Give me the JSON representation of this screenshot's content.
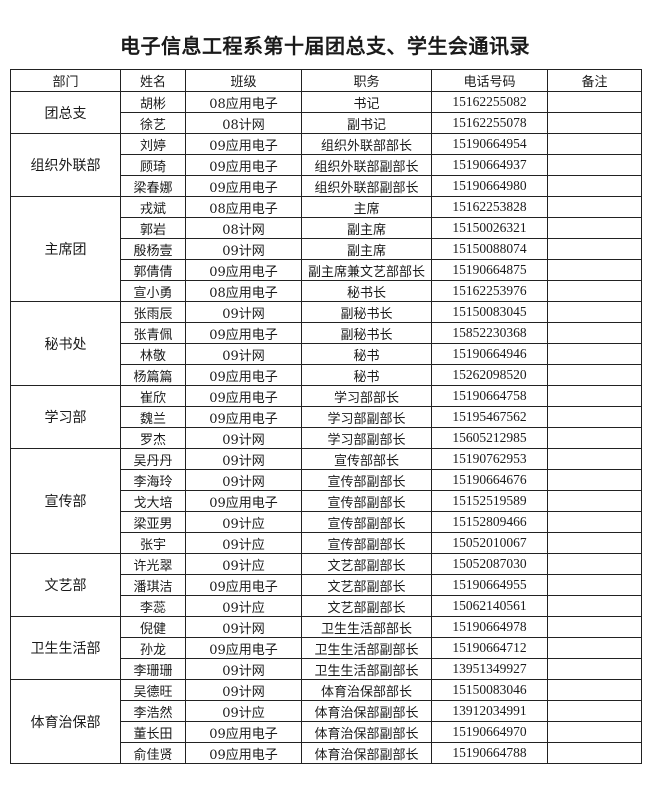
{
  "title": "电子信息工程系第十届团总支、学生会通讯录",
  "headers": [
    "部门",
    "姓名",
    "班级",
    "职务",
    "电话号码",
    "备注"
  ],
  "groups": [
    {
      "dept": "团总支",
      "members": [
        {
          "name": "胡彬",
          "class": "08应用电子",
          "role": "书记",
          "phone": "15162255082",
          "note": ""
        },
        {
          "name": "徐艺",
          "class": "08计网",
          "role": "副书记",
          "phone": "15162255078",
          "note": ""
        }
      ]
    },
    {
      "dept": "组织外联部",
      "members": [
        {
          "name": "刘婷",
          "class": "09应用电子",
          "role": "组织外联部部长",
          "phone": "15190664954",
          "note": ""
        },
        {
          "name": "顾琦",
          "class": "09应用电子",
          "role": "组织外联部副部长",
          "phone": "15190664937",
          "note": ""
        },
        {
          "name": "梁春娜",
          "class": "09应用电子",
          "role": "组织外联部副部长",
          "phone": "15190664980",
          "note": ""
        }
      ]
    },
    {
      "dept": "主席团",
      "members": [
        {
          "name": "戎斌",
          "class": "08应用电子",
          "role": "主席",
          "phone": "15162253828",
          "note": ""
        },
        {
          "name": "郭岩",
          "class": "08计网",
          "role": "副主席",
          "phone": "15150026321",
          "note": ""
        },
        {
          "name": "殷杨壹",
          "class": "09计网",
          "role": "副主席",
          "phone": "15150088074",
          "note": ""
        },
        {
          "name": "郭倩倩",
          "class": "09应用电子",
          "role": "副主席兼文艺部部长",
          "phone": "15190664875",
          "note": ""
        },
        {
          "name": "宣小勇",
          "class": "08应用电子",
          "role": "秘书长",
          "phone": "15162253976",
          "note": ""
        }
      ]
    },
    {
      "dept": "秘书处",
      "members": [
        {
          "name": "张雨辰",
          "class": "09计网",
          "role": "副秘书长",
          "phone": "15150083045",
          "note": ""
        },
        {
          "name": "张青佩",
          "class": "09应用电子",
          "role": "副秘书长",
          "phone": "15852230368",
          "note": ""
        },
        {
          "name": "林敬",
          "class": "09计网",
          "role": "秘书",
          "phone": "15190664946",
          "note": ""
        },
        {
          "name": "杨篇篇",
          "class": "09应用电子",
          "role": "秘书",
          "phone": "15262098520",
          "note": ""
        }
      ]
    },
    {
      "dept": "学习部",
      "members": [
        {
          "name": "崔欣",
          "class": "09应用电子",
          "role": "学习部部长",
          "phone": "15190664758",
          "note": ""
        },
        {
          "name": "魏兰",
          "class": "09应用电子",
          "role": "学习部副部长",
          "phone": "15195467562",
          "note": ""
        },
        {
          "name": "罗杰",
          "class": "09计网",
          "role": "学习部副部长",
          "phone": "15605212985",
          "note": ""
        }
      ]
    },
    {
      "dept": "宣传部",
      "members": [
        {
          "name": "吴丹丹",
          "class": "09计网",
          "role": "宣传部部长",
          "phone": "15190762953",
          "note": ""
        },
        {
          "name": "李海玲",
          "class": "09计网",
          "role": "宣传部副部长",
          "phone": "15190664676",
          "note": ""
        },
        {
          "name": "戈大培",
          "class": "09应用电子",
          "role": "宣传部副部长",
          "phone": "15152519589",
          "note": ""
        },
        {
          "name": "梁亚男",
          "class": "09计应",
          "role": "宣传部副部长",
          "phone": "15152809466",
          "note": ""
        },
        {
          "name": "张宇",
          "class": "09计应",
          "role": "宣传部副部长",
          "phone": "15052010067",
          "note": ""
        }
      ]
    },
    {
      "dept": "文艺部",
      "members": [
        {
          "name": "许光翠",
          "class": "09计应",
          "role": "文艺部副部长",
          "phone": "15052087030",
          "note": ""
        },
        {
          "name": "潘琪洁",
          "class": "09应用电子",
          "role": "文艺部副部长",
          "phone": "15190664955",
          "note": ""
        },
        {
          "name": "李蕊",
          "class": "09计应",
          "role": "文艺部副部长",
          "phone": "15062140561",
          "note": ""
        }
      ]
    },
    {
      "dept": "卫生生活部",
      "members": [
        {
          "name": "倪健",
          "class": "09计网",
          "role": "卫生生活部部长",
          "phone": "15190664978",
          "note": ""
        },
        {
          "name": "孙龙",
          "class": "09应用电子",
          "role": "卫生生活部副部长",
          "phone": "15190664712",
          "note": ""
        },
        {
          "name": "李珊珊",
          "class": "09计网",
          "role": "卫生生活部副部长",
          "phone": "13951349927",
          "note": ""
        }
      ]
    },
    {
      "dept": "体育治保部",
      "members": [
        {
          "name": "吴德旺",
          "class": "09计网",
          "role": "体育治保部部长",
          "phone": "15150083046",
          "note": ""
        },
        {
          "name": "李浩然",
          "class": "09计应",
          "role": "体育治保部副部长",
          "phone": "13912034991",
          "note": ""
        },
        {
          "name": "董长田",
          "class": "09应用电子",
          "role": "体育治保部副部长",
          "phone": "15190664970",
          "note": ""
        },
        {
          "name": "俞佳贤",
          "class": "09应用电子",
          "role": "体育治保部副部长",
          "phone": "15190664788",
          "note": ""
        }
      ]
    }
  ]
}
